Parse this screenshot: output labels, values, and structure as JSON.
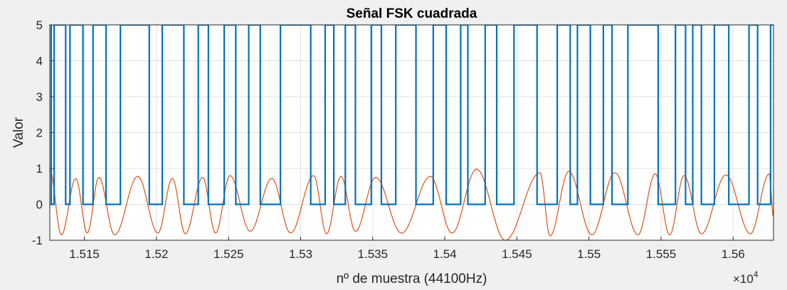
{
  "chart_data": {
    "type": "line",
    "title": "Señal FSK cuadrada",
    "xlabel": "nº de muestra (44100Hz)",
    "ylabel": "Valor",
    "x_exponent_base": "×10",
    "x_exponent_power": "4",
    "xlim": [
      15126,
      15628
    ],
    "ylim": [
      -1,
      5
    ],
    "x_ticks": [
      15150,
      15200,
      15250,
      15300,
      15350,
      15400,
      15450,
      15500,
      15550,
      15600
    ],
    "x_tick_labels": [
      "1.515",
      "1.52",
      "1.525",
      "1.53",
      "1.535",
      "1.54",
      "1.545",
      "1.55",
      "1.555",
      "1.56"
    ],
    "y_ticks": [
      -1,
      0,
      1,
      2,
      3,
      4,
      5
    ],
    "y_tick_labels": [
      "-1",
      "0",
      "1",
      "2",
      "3",
      "4",
      "5"
    ],
    "grid": true,
    "colors": {
      "square": "#0072bd",
      "sine": "#d95319",
      "axes_bg": "#ffffff",
      "figure_bg": "#f0f0f0",
      "grid": "#e0e0e0"
    },
    "series": [
      {
        "style": "step",
        "high_value": 5,
        "low_value": 0,
        "high_intervals": [
          [
            15126,
            15127
          ],
          [
            15129,
            15137
          ],
          [
            15140,
            15149
          ],
          [
            15156,
            15165
          ],
          [
            15175,
            15195
          ],
          [
            15204,
            15219
          ],
          [
            15229,
            15236
          ],
          [
            15247,
            15255
          ],
          [
            15264,
            15272
          ],
          [
            15286,
            15307
          ],
          [
            15317,
            15323
          ],
          [
            15331,
            15338
          ],
          [
            15349,
            15356
          ],
          [
            15366,
            15380
          ],
          [
            15392,
            15401
          ],
          [
            15411,
            15416
          ],
          [
            15428,
            15436
          ],
          [
            15448,
            15464
          ],
          [
            15478,
            15487
          ],
          [
            15492,
            15501
          ],
          [
            15510,
            15516
          ],
          [
            15527,
            15548
          ],
          [
            15560,
            15567
          ],
          [
            15572,
            15578
          ],
          [
            15587,
            15597
          ],
          [
            15611,
            15617
          ],
          [
            15626,
            15628
          ]
        ]
      },
      {
        "style": "line",
        "peaks": [
          [
            15126,
            0.95
          ],
          [
            15134,
            -0.85
          ],
          [
            15144,
            0.72
          ],
          [
            15152,
            -0.8
          ],
          [
            15160,
            0.75
          ],
          [
            15171,
            -0.85
          ],
          [
            15187,
            0.78
          ],
          [
            15201,
            -0.8
          ],
          [
            15211,
            0.72
          ],
          [
            15220,
            -0.82
          ],
          [
            15232,
            0.75
          ],
          [
            15241,
            -0.8
          ],
          [
            15251,
            0.8
          ],
          [
            15265,
            -0.75
          ],
          [
            15280,
            0.72
          ],
          [
            15293,
            -0.8
          ],
          [
            15309,
            0.8
          ],
          [
            15318,
            -0.82
          ],
          [
            15328,
            0.78
          ],
          [
            15338,
            -0.75
          ],
          [
            15352,
            0.75
          ],
          [
            15370,
            -0.8
          ],
          [
            15390,
            0.78
          ],
          [
            15405,
            -0.8
          ],
          [
            15422,
            0.98
          ],
          [
            15442,
            -1.0
          ],
          [
            15466,
            0.88
          ],
          [
            15473,
            -0.88
          ],
          [
            15486,
            0.92
          ],
          [
            15502,
            -0.85
          ],
          [
            15518,
            0.88
          ],
          [
            15534,
            -0.85
          ],
          [
            15546,
            0.85
          ],
          [
            15556,
            -0.85
          ],
          [
            15566,
            0.8
          ],
          [
            15578,
            -0.82
          ],
          [
            15595,
            0.82
          ],
          [
            15612,
            -0.82
          ],
          [
            15625,
            0.85
          ],
          [
            15628,
            -0.35
          ]
        ]
      }
    ]
  }
}
